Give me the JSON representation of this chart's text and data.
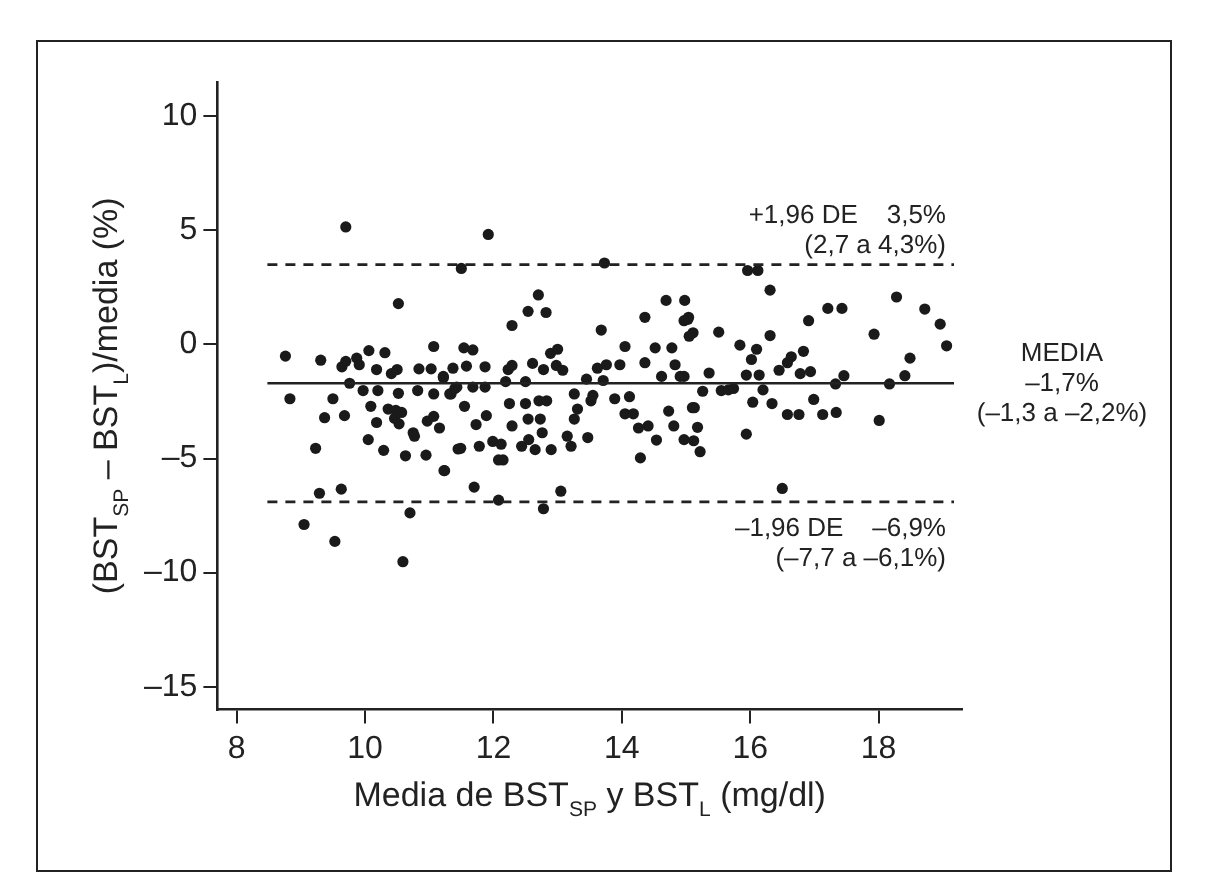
{
  "chart_data": {
    "type": "scatter",
    "xlabel": "Media de BST$_{SP}$ y BST$_{L}$ (mg/dl)",
    "ylabel": "(BST$_{SP}$ – BST$_{L}$)/media (%)",
    "xlim": [
      7.7,
      19.3
    ],
    "ylim": [
      -16,
      11.5
    ],
    "xticks": [
      8,
      10,
      12,
      14,
      16,
      18
    ],
    "yticks": [
      {
        "value": -15,
        "label": "–15"
      },
      {
        "value": -10,
        "label": "–10"
      },
      {
        "value": -5,
        "label": "–5"
      },
      0,
      5,
      10
    ],
    "grid": false,
    "legend": false,
    "marker": "circle",
    "ref_lines": [
      {
        "axis": "y",
        "value": 3.5,
        "label": "+1,96 DE    3,5%\n(2,7 a 4,3%)",
        "line_style": "dashed"
      },
      {
        "axis": "y",
        "value": -1.7,
        "label": "MEDIA\n–1,7%\n(–1,3 a –2,2%)",
        "line_style": "solid"
      },
      {
        "axis": "y",
        "value": -6.9,
        "label": "–1,96 DE    –6,9%\n(–7,7 a –6,1%)",
        "line_style": "dashed"
      }
    ],
    "series": [
      {
        "color": "#1a1a1a",
        "x": [
          9.7,
          10.52,
          8.76,
          8.83,
          9.31,
          9.37,
          9.5,
          9.23,
          9.29,
          9.63,
          9.05,
          9.53,
          10.59,
          10.7,
          9.64,
          9.7,
          9.87,
          9.76,
          9.91,
          10.06,
          10.31,
          10.18,
          10.41,
          10.5,
          9.97,
          10.2,
          10.52,
          10.84,
          11.07,
          11.03,
          11.22,
          11.37,
          11.07,
          11.34,
          11.4,
          10.82,
          10.09,
          10.36,
          10.48,
          10.57,
          10.53,
          10.46,
          10.18,
          10.05,
          9.68,
          10.29,
          10.63,
          10.75,
          10.77,
          10.97,
          11.07,
          11.16,
          10.95,
          11.23,
          11.45,
          11.92,
          11.5,
          13.73,
          12.7,
          12.54,
          12.82,
          12.29,
          13.68,
          14.36,
          14.69,
          14.98,
          15.04,
          15.11,
          11.54,
          11.68,
          11.58,
          11.87,
          11.22,
          11.32,
          11.43,
          11.68,
          11.87,
          12.19,
          12.23,
          12.29,
          12.5,
          12.61,
          12.78,
          12.89,
          13.0,
          12.98,
          13.08,
          13.45,
          13.62,
          13.76,
          13.97,
          14.05,
          13.71,
          13.55,
          13.52,
          13.89,
          14.12,
          14.36,
          14.52,
          14.78,
          14.83,
          14.62,
          14.91,
          14.73,
          14.81,
          15.13,
          15.18,
          11.55,
          12.25,
          12.5,
          12.71,
          12.83,
          12.54,
          12.73,
          13.26,
          13.31,
          13.26,
          12.29,
          11.73,
          11.89,
          11.99,
          11.78,
          12.12,
          12.15,
          12.44,
          12.55,
          12.65,
          12.76,
          12.9,
          13.15,
          13.21,
          13.47,
          14.05,
          14.18,
          14.26,
          14.41,
          14.29,
          14.54,
          11.49,
          11.24,
          11.7,
          12.08,
          12.78,
          13.05,
          12.08,
          15.96,
          16.12,
          16.31,
          15.03,
          15.05,
          15.51,
          15.84,
          16.02,
          16.1,
          16.31,
          16.91,
          17.21,
          17.43,
          17.93,
          18.28,
          18.72,
          18.96,
          19.06,
          18.49,
          18.41,
          18.17,
          17.46,
          17.33,
          16.83,
          16.64,
          16.58,
          16.45,
          16.78,
          16.94,
          15.94,
          16.14,
          15.36,
          15.26,
          15.55,
          15.66,
          15.74,
          16.2,
          14.97,
          15.1,
          16.04,
          16.34,
          16.58,
          16.76,
          16.99,
          17.13,
          17.34,
          18.01,
          15.94,
          14.97,
          15.12,
          15.22,
          16.5,
          14.97
        ],
        "values": [
          5.15,
          1.79,
          -0.51,
          -2.38,
          -0.69,
          -3.21,
          -2.38,
          -4.55,
          -6.52,
          -6.34,
          -7.89,
          -8.63,
          -9.52,
          -7.38,
          -0.98,
          -0.74,
          -0.6,
          -1.7,
          -0.89,
          -0.27,
          -0.36,
          -1.1,
          -1.28,
          -1.1,
          -2.02,
          -2.02,
          -2.14,
          -1.07,
          -0.09,
          -1.07,
          -1.46,
          -1.04,
          -2.17,
          -2.17,
          -1.93,
          -2.02,
          -2.71,
          -2.83,
          -2.89,
          -2.98,
          -3.48,
          -3.24,
          -3.42,
          -4.17,
          -3.12,
          -4.64,
          -4.88,
          -3.87,
          -4.02,
          -3.36,
          -3.15,
          -3.66,
          -4.85,
          -5.53,
          -4.58,
          4.82,
          3.33,
          3.57,
          2.17,
          1.45,
          1.4,
          0.83,
          0.63,
          1.19,
          1.93,
          1.93,
          1.19,
          0.51,
          -0.15,
          -0.24,
          -0.95,
          -0.98,
          -1.4,
          -2.17,
          -1.87,
          -1.87,
          -1.87,
          -1.63,
          -1.1,
          -0.92,
          -1.63,
          -0.83,
          -1.1,
          -0.39,
          -0.21,
          -0.92,
          -1.13,
          -1.52,
          -1.04,
          -0.89,
          -0.89,
          -0.09,
          -1.58,
          -2.23,
          -2.47,
          -2.38,
          -2.29,
          -0.8,
          -0.15,
          -0.15,
          -0.89,
          -1.4,
          -1.4,
          -2.92,
          -3.57,
          -2.77,
          -3.63,
          -2.71,
          -2.59,
          -2.59,
          -2.47,
          -2.47,
          -3.27,
          -3.27,
          -2.17,
          -2.83,
          -3.27,
          -3.57,
          -3.51,
          -3.12,
          -4.25,
          -4.46,
          -4.37,
          -5.06,
          -4.46,
          -4.17,
          -4.61,
          -3.87,
          -4.61,
          -4.02,
          -4.46,
          -4.08,
          -3.04,
          -3.04,
          -3.66,
          -3.57,
          -4.97,
          -4.19,
          -4.55,
          -5.53,
          -6.25,
          -6.82,
          -7.2,
          -6.43,
          -5.06,
          3.24,
          3.24,
          2.38,
          1.1,
          0.36,
          0.54,
          -0.03,
          -0.66,
          -0.21,
          0.39,
          1.04,
          1.58,
          1.58,
          0.45,
          2.08,
          1.55,
          0.89,
          -0.06,
          -0.6,
          -1.37,
          -1.73,
          -1.37,
          -1.73,
          -0.3,
          -0.54,
          -0.8,
          -1.13,
          -1.28,
          -1.19,
          -1.34,
          -1.34,
          -1.25,
          -2.05,
          -2.02,
          -1.99,
          -1.93,
          -1.99,
          -1.4,
          -2.77,
          -2.53,
          -2.59,
          -3.07,
          -3.07,
          -2.41,
          -3.07,
          -2.98,
          -3.33,
          -3.93,
          -4.17,
          -4.22,
          -4.7,
          -6.31,
          1.04
        ]
      }
    ]
  }
}
